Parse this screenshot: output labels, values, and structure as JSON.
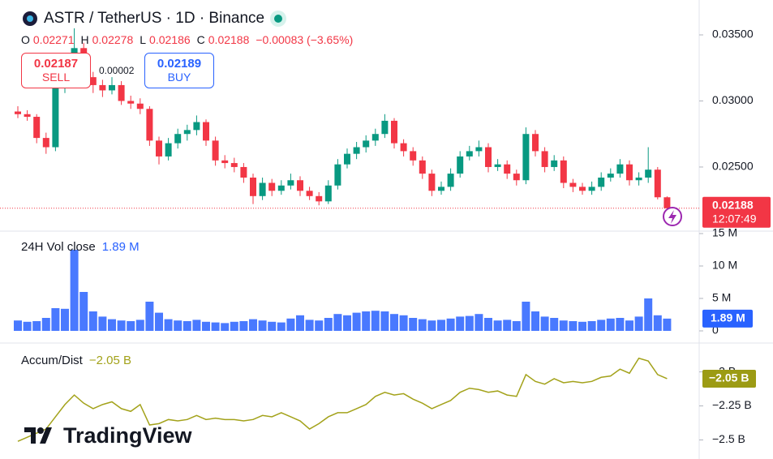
{
  "header": {
    "title": "ASTR / TetherUS · 1D · Binance",
    "o": "O",
    "h": "H",
    "l": "L",
    "c": "C",
    "change": "−0.00083 (−3.65%)"
  },
  "trade": {
    "sell_price": "0.02187",
    "sell": "SELL",
    "spread": "0.00002",
    "buy_price": "0.02189",
    "buy": "BUY"
  },
  "countdown": "12:07:49",
  "logo": "TradingView",
  "chart_data": [
    {
      "type": "candlestick",
      "up_color": "#089981",
      "down_color": "#f23645",
      "open": [
        0.0292,
        0.029,
        0.0288,
        0.0272,
        0.0265,
        0.031,
        0.033,
        0.034,
        0.0318,
        0.0312,
        0.0308,
        0.0312,
        0.03,
        0.0298,
        0.0294,
        0.027,
        0.0258,
        0.0268,
        0.0275,
        0.0278,
        0.0284,
        0.027,
        0.0255,
        0.0253,
        0.025,
        0.0242,
        0.0228,
        0.0238,
        0.0232,
        0.0236,
        0.024,
        0.0232,
        0.0228,
        0.0224,
        0.0236,
        0.0252,
        0.026,
        0.0265,
        0.027,
        0.0275,
        0.0285,
        0.0268,
        0.0262,
        0.0255,
        0.0245,
        0.0232,
        0.0235,
        0.0245,
        0.0258,
        0.0262,
        0.0265,
        0.025,
        0.0252,
        0.0245,
        0.024,
        0.0275,
        0.0262,
        0.025,
        0.0255,
        0.0238,
        0.0235,
        0.0232,
        0.0235,
        0.0242,
        0.0245,
        0.0252,
        0.024,
        0.0242,
        0.0248,
        0.02271
      ],
      "high": [
        0.0296,
        0.0293,
        0.029,
        0.0276,
        0.0314,
        0.0336,
        0.0355,
        0.0344,
        0.0322,
        0.0316,
        0.0318,
        0.0315,
        0.0304,
        0.0302,
        0.0296,
        0.0273,
        0.0272,
        0.0279,
        0.0282,
        0.0289,
        0.0286,
        0.0273,
        0.0259,
        0.0257,
        0.0253,
        0.0245,
        0.0242,
        0.0241,
        0.024,
        0.0245,
        0.0243,
        0.0235,
        0.0231,
        0.024,
        0.0256,
        0.0264,
        0.0269,
        0.0274,
        0.0279,
        0.029,
        0.0287,
        0.0271,
        0.0265,
        0.0258,
        0.0248,
        0.0239,
        0.0249,
        0.0262,
        0.0266,
        0.027,
        0.0268,
        0.0256,
        0.0255,
        0.0248,
        0.028,
        0.0278,
        0.0265,
        0.0259,
        0.0258,
        0.0241,
        0.0238,
        0.0239,
        0.0246,
        0.0249,
        0.0256,
        0.0255,
        0.0246,
        0.0265,
        0.025,
        0.02278
      ],
      "low": [
        0.0287,
        0.0285,
        0.0268,
        0.026,
        0.0262,
        0.0306,
        0.0326,
        0.0314,
        0.0306,
        0.0303,
        0.0305,
        0.0297,
        0.0294,
        0.029,
        0.0266,
        0.0252,
        0.0255,
        0.0264,
        0.027,
        0.0274,
        0.0266,
        0.0251,
        0.0249,
        0.0246,
        0.0238,
        0.0222,
        0.0225,
        0.0228,
        0.0229,
        0.0233,
        0.0228,
        0.0225,
        0.0221,
        0.0222,
        0.0233,
        0.0249,
        0.0256,
        0.0261,
        0.0266,
        0.0272,
        0.0264,
        0.0258,
        0.0251,
        0.0241,
        0.0228,
        0.0229,
        0.0232,
        0.0242,
        0.0255,
        0.0258,
        0.0246,
        0.0247,
        0.0241,
        0.0236,
        0.0237,
        0.0258,
        0.0246,
        0.0247,
        0.0234,
        0.0231,
        0.0229,
        0.0229,
        0.0232,
        0.0239,
        0.0242,
        0.0236,
        0.0236,
        0.0238,
        0.02255,
        0.02186
      ],
      "close": [
        0.029,
        0.0288,
        0.0272,
        0.0265,
        0.031,
        0.033,
        0.034,
        0.0318,
        0.0312,
        0.0308,
        0.0312,
        0.03,
        0.0298,
        0.0294,
        0.027,
        0.0258,
        0.0268,
        0.0275,
        0.0278,
        0.0284,
        0.027,
        0.0255,
        0.0253,
        0.025,
        0.0242,
        0.0228,
        0.0238,
        0.0232,
        0.0236,
        0.024,
        0.0232,
        0.0228,
        0.0224,
        0.0236,
        0.0252,
        0.026,
        0.0265,
        0.027,
        0.0275,
        0.0285,
        0.0268,
        0.0262,
        0.0255,
        0.0245,
        0.0232,
        0.0235,
        0.0245,
        0.0258,
        0.0262,
        0.0265,
        0.025,
        0.0252,
        0.0245,
        0.024,
        0.0275,
        0.0262,
        0.025,
        0.0255,
        0.0238,
        0.0235,
        0.0232,
        0.0235,
        0.0242,
        0.0245,
        0.0252,
        0.024,
        0.0242,
        0.0248,
        0.02271,
        0.02188
      ],
      "ylim": [
        0.02021,
        0.03764
      ],
      "yticks": [
        {
          "value": 0.035,
          "label": "0.03500"
        },
        {
          "value": 0.03,
          "label": "0.03000"
        },
        {
          "value": 0.025,
          "label": "0.02500"
        }
      ]
    },
    {
      "type": "bar",
      "name": "24H Vol close",
      "last_label": "1.89 M",
      "color": "#2962ff",
      "values": [
        1.6,
        1.4,
        1.5,
        2.0,
        3.5,
        3.4,
        12.5,
        6.0,
        3.0,
        2.2,
        1.8,
        1.6,
        1.5,
        1.7,
        4.5,
        2.8,
        1.8,
        1.6,
        1.5,
        1.7,
        1.4,
        1.3,
        1.2,
        1.4,
        1.5,
        1.8,
        1.6,
        1.4,
        1.3,
        1.9,
        2.4,
        1.7,
        1.6,
        2.0,
        2.6,
        2.4,
        2.8,
        3.0,
        3.1,
        3.0,
        2.6,
        2.4,
        2.0,
        1.8,
        1.6,
        1.7,
        1.9,
        2.2,
        2.3,
        2.6,
        2.0,
        1.6,
        1.7,
        1.5,
        4.5,
        3.0,
        2.2,
        2.0,
        1.6,
        1.5,
        1.4,
        1.5,
        1.7,
        1.9,
        2.0,
        1.6,
        2.2,
        5.0,
        2.4,
        1.89
      ],
      "ylim": [
        -1.5,
        15
      ],
      "yticks": [
        0,
        {
          "value": 5,
          "label": "5 M"
        },
        {
          "value": 10,
          "label": "10 M"
        },
        {
          "value": 15,
          "label": "15 M"
        }
      ]
    },
    {
      "type": "line",
      "name": "Accum/Dist",
      "last_label": "−2.05 B",
      "color": "#a3a21a",
      "values": [
        -2.51,
        -2.48,
        -2.45,
        -2.42,
        -2.33,
        -2.24,
        -2.17,
        -2.23,
        -2.27,
        -2.24,
        -2.22,
        -2.27,
        -2.29,
        -2.24,
        -2.39,
        -2.38,
        -2.35,
        -2.36,
        -2.35,
        -2.32,
        -2.35,
        -2.34,
        -2.35,
        -2.35,
        -2.36,
        -2.35,
        -2.32,
        -2.33,
        -2.3,
        -2.33,
        -2.36,
        -2.42,
        -2.38,
        -2.33,
        -2.3,
        -2.3,
        -2.27,
        -2.24,
        -2.18,
        -2.15,
        -2.17,
        -2.16,
        -2.2,
        -2.23,
        -2.27,
        -2.24,
        -2.21,
        -2.15,
        -2.12,
        -2.13,
        -2.15,
        -2.14,
        -2.17,
        -2.18,
        -2.02,
        -2.07,
        -2.09,
        -2.05,
        -2.08,
        -2.07,
        -2.08,
        -2.07,
        -2.04,
        -2.03,
        -1.98,
        -2.01,
        -1.9,
        -1.92,
        -2.02,
        -2.05
      ],
      "ylim": [
        -2.64,
        -1.8
      ],
      "yticks": [
        {
          "value": -2,
          "label": "−2 B"
        },
        {
          "value": -2.25,
          "label": "−2.25 B"
        },
        {
          "value": -2.5,
          "label": "−2.5 B"
        }
      ]
    }
  ]
}
